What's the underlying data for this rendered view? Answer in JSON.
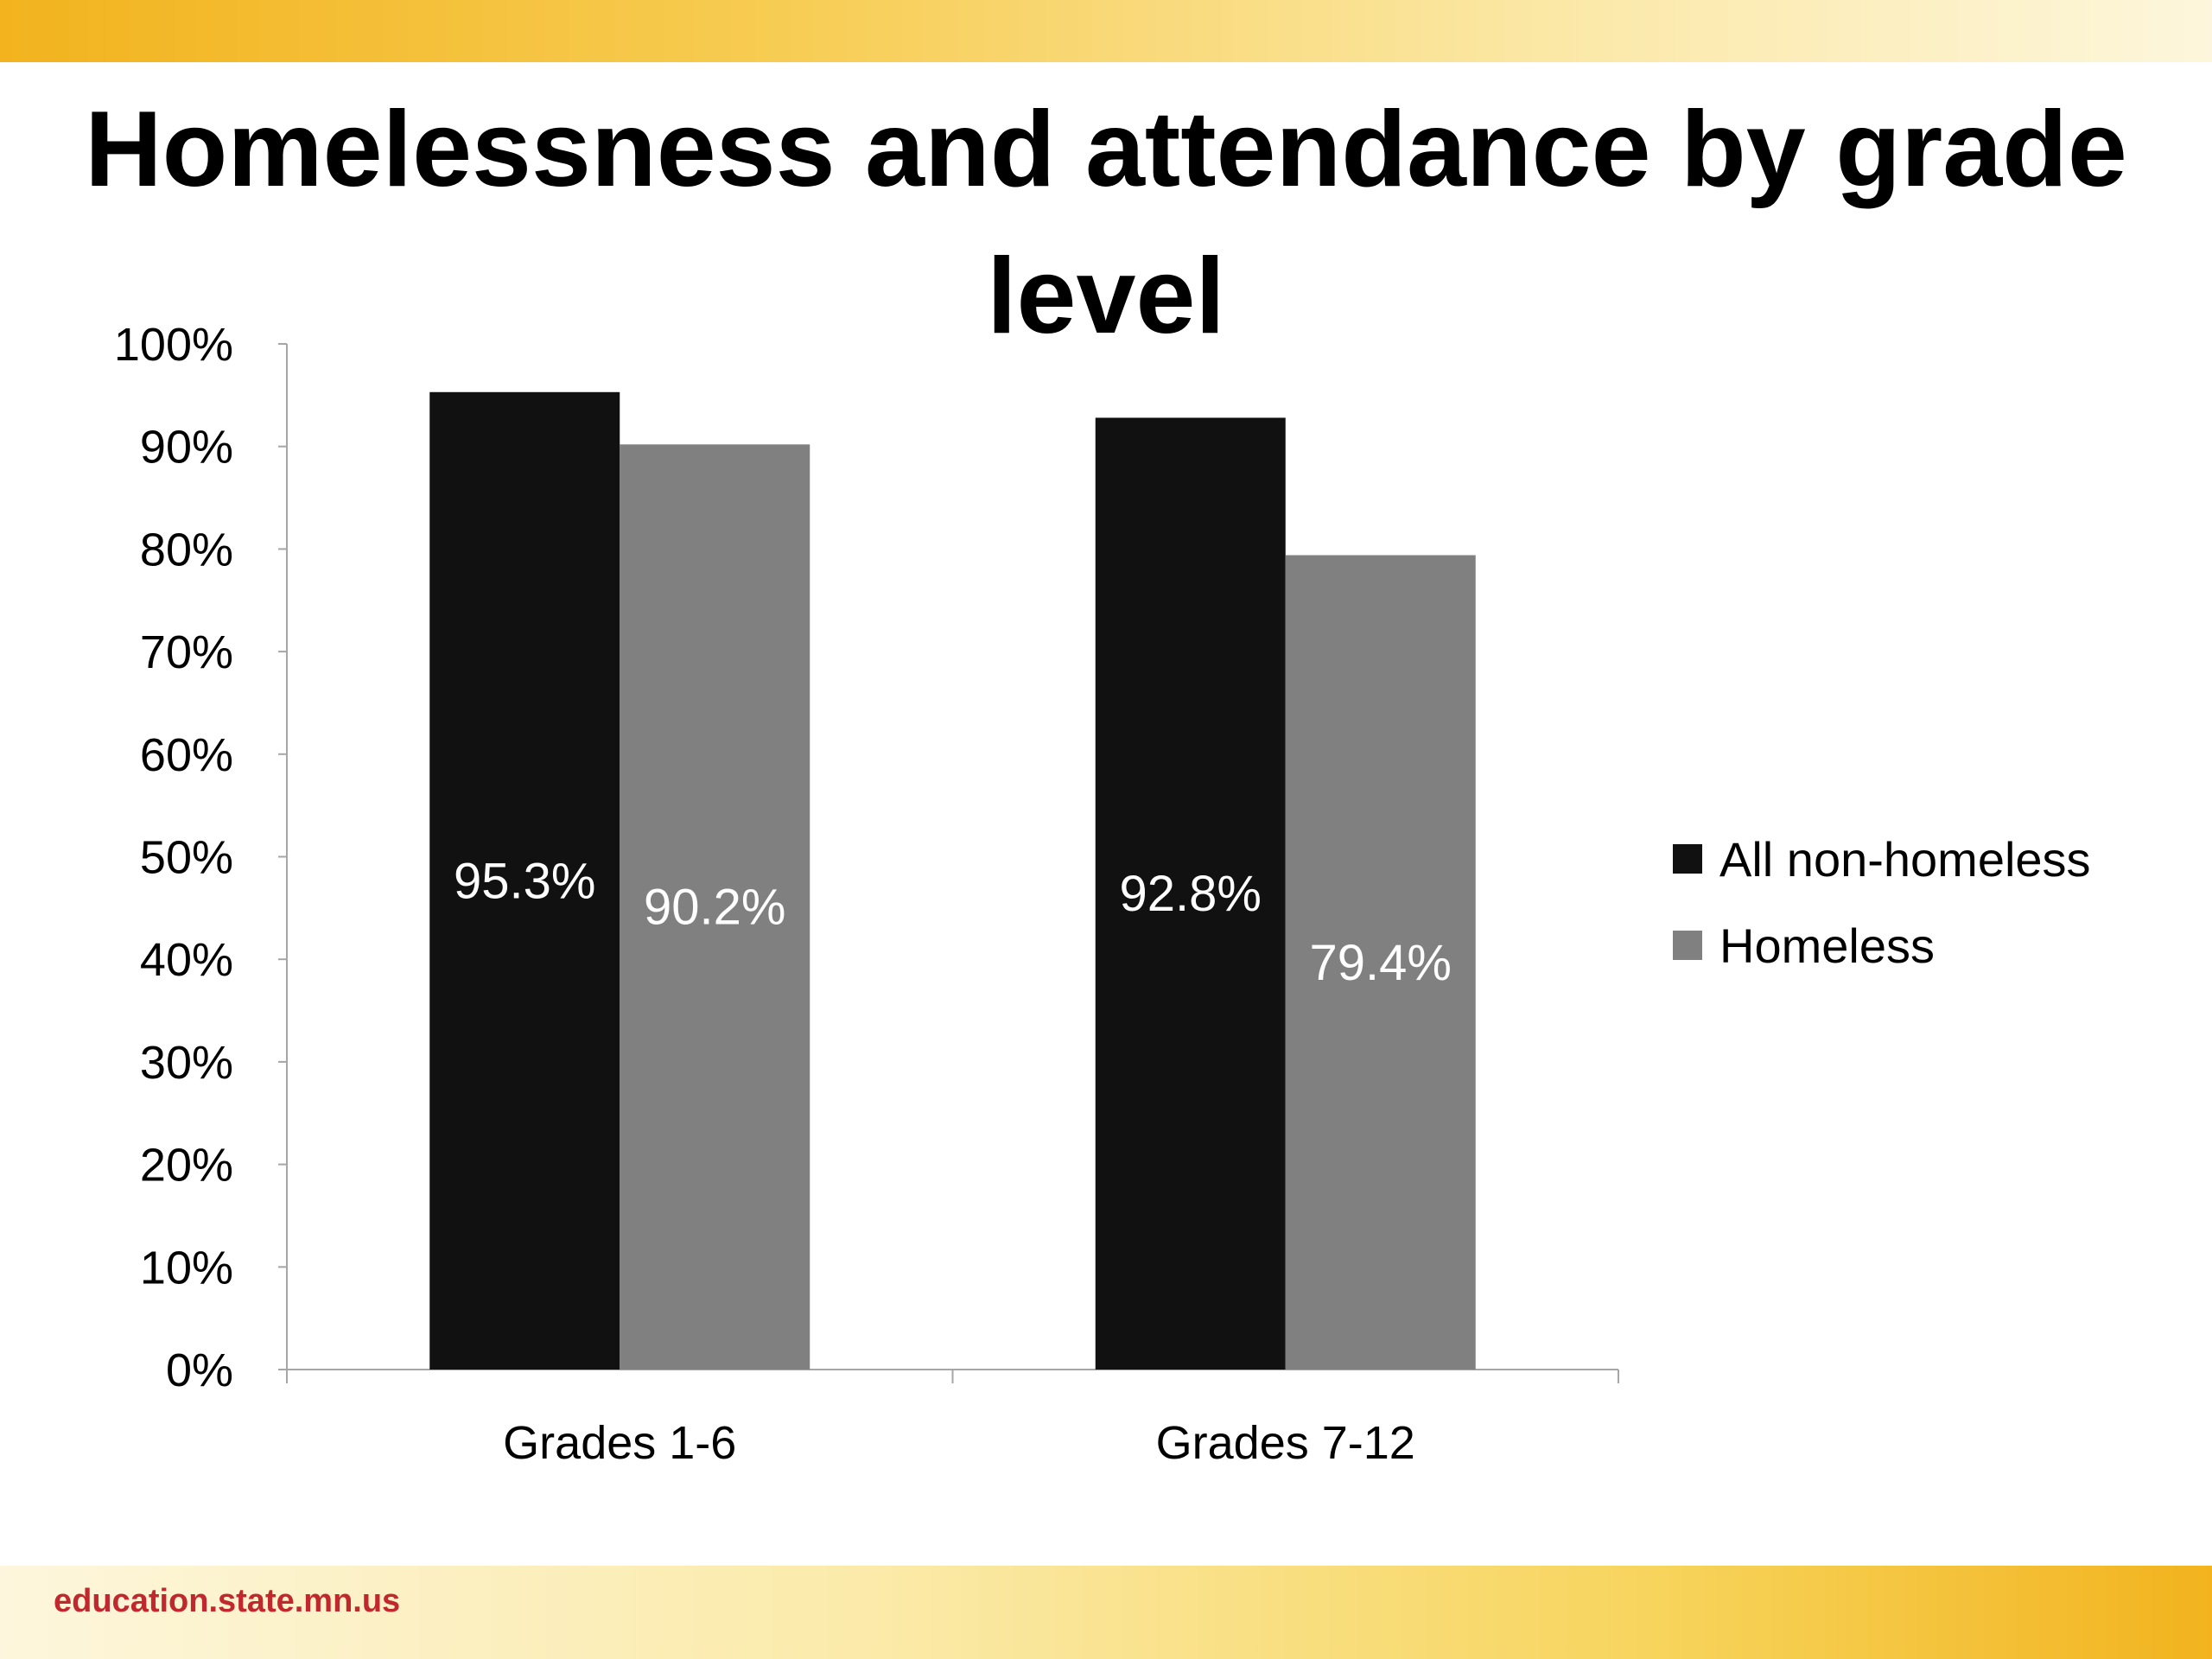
{
  "slide": {
    "title": "Homelessness and attendance by grade level",
    "footer": "education.state.mn.us"
  },
  "colors": {
    "band": "#f2b31e",
    "footer_text": "#c0282e"
  },
  "chart_data": {
    "type": "bar",
    "title": "",
    "xlabel": "",
    "ylabel": "",
    "categories": [
      "Grades 1-6",
      "Grades 7-12"
    ],
    "series": [
      {
        "name": "All non-homeless",
        "color": "#111111",
        "values": [
          95.3,
          92.8
        ],
        "labels": [
          "95.3%",
          "92.8%"
        ]
      },
      {
        "name": "Homeless",
        "color": "#808080",
        "values": [
          90.2,
          79.4
        ],
        "labels": [
          "90.2%",
          "79.4%"
        ]
      }
    ],
    "ylim": [
      0,
      100
    ],
    "yticks": [
      0,
      10,
      20,
      30,
      40,
      50,
      60,
      70,
      80,
      90,
      100
    ],
    "ytick_labels": [
      "0%",
      "10%",
      "20%",
      "30%",
      "40%",
      "50%",
      "60%",
      "70%",
      "80%",
      "90%",
      "100%"
    ],
    "grid": false,
    "legend_position": "right"
  }
}
